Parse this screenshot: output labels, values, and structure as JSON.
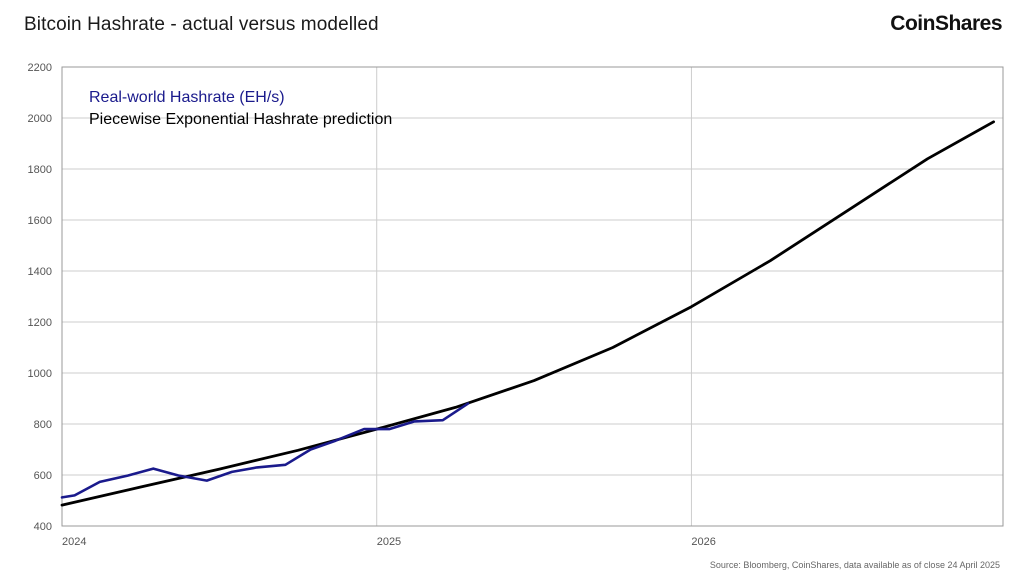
{
  "header": {
    "title": "Bitcoin Hashrate - actual versus modelled",
    "brand": "CoinShares"
  },
  "footer": {
    "source": "Source: Bloomberg, CoinShares, data available as of close 24 April 2025"
  },
  "colors": {
    "actual": "#1a1a8c",
    "model": "#000000",
    "grid": "#cccccc",
    "frame": "#999999"
  },
  "chart_data": {
    "type": "line",
    "title": "Bitcoin Hashrate - actual versus modelled",
    "xlabel": "",
    "ylabel": "",
    "xlim": [
      2024.0,
      2026.99
    ],
    "ylim": [
      400,
      2200
    ],
    "yticks": [
      400,
      600,
      800,
      1000,
      1200,
      1400,
      1600,
      1800,
      2000,
      2200
    ],
    "xticks": [
      {
        "value": 2024.0,
        "label": "2024"
      },
      {
        "value": 2025.0,
        "label": "2025"
      },
      {
        "value": 2026.0,
        "label": "2026"
      }
    ],
    "grid": true,
    "legend_position": "top-left",
    "series": [
      {
        "name": "Real-world Hashrate (EH/s)",
        "color": "#1a1a8c",
        "x": [
          2024.0,
          2024.04,
          2024.12,
          2024.21,
          2024.29,
          2024.37,
          2024.46,
          2024.54,
          2024.62,
          2024.71,
          2024.79,
          2024.87,
          2024.96,
          2025.04,
          2025.12,
          2025.21,
          2025.29
        ],
        "y": [
          512,
          520,
          573,
          598,
          625,
          598,
          578,
          612,
          630,
          640,
          700,
          735,
          780,
          780,
          810,
          815,
          880
        ]
      },
      {
        "name": "Piecewise Exponential Hashrate prediction",
        "color": "#000000",
        "x": [
          2024.0,
          2024.25,
          2024.5,
          2024.75,
          2025.0,
          2025.25,
          2025.5,
          2025.75,
          2026.0,
          2026.25,
          2026.5,
          2026.75,
          2026.96
        ],
        "y": [
          482,
          553,
          623,
          697,
          780,
          865,
          970,
          1100,
          1260,
          1440,
          1640,
          1840,
          1985
        ]
      }
    ]
  }
}
